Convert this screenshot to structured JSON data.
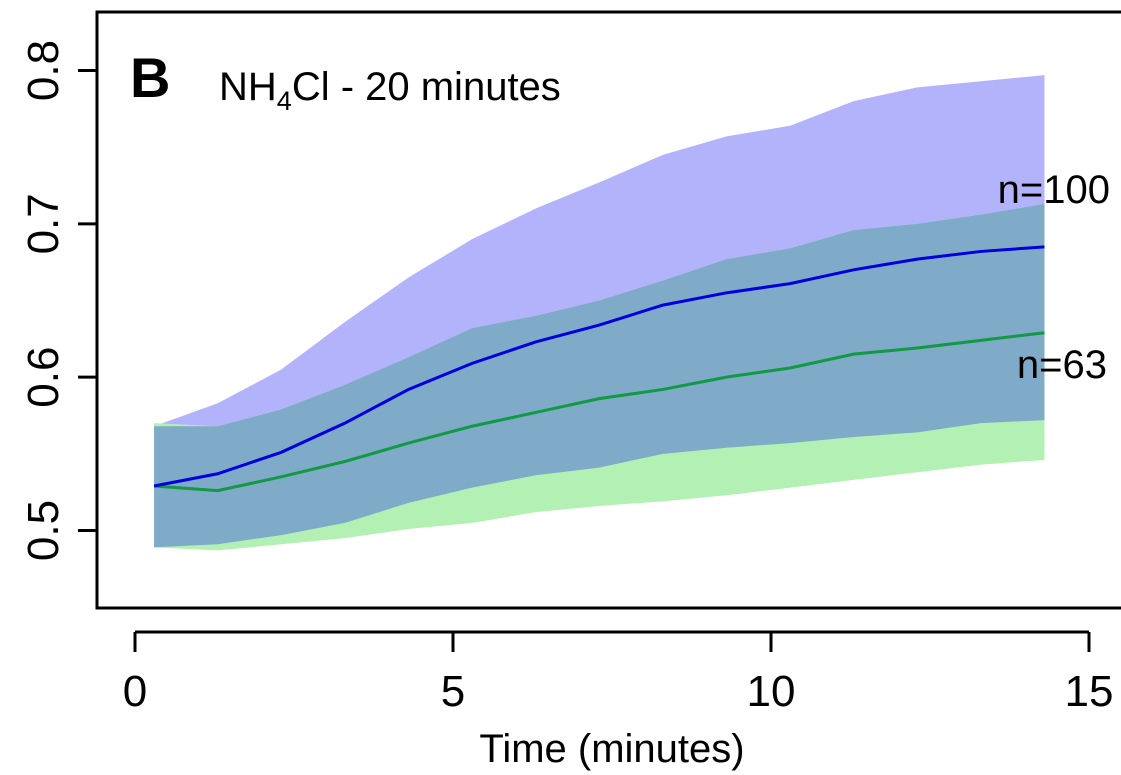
{
  "chart_data": {
    "type": "area",
    "panel_label": "B",
    "title": {
      "main": "NH",
      "subscript": "4",
      "rest": "Cl - 20 minutes"
    },
    "xlabel": "Time (minutes)",
    "ylabel": "",
    "xlim": [
      0,
      15
    ],
    "ylim": [
      0.45,
      0.84
    ],
    "x_ticks": [
      0,
      5,
      10,
      15
    ],
    "y_ticks": [
      0.5,
      0.6,
      0.7,
      0.8
    ],
    "x_tick_labels": [
      "0",
      "5",
      "10",
      "15"
    ],
    "y_tick_labels": [
      "0.5",
      "0.6",
      "0.7",
      "0.8"
    ],
    "grid": false,
    "x": [
      0.3,
      1.3,
      2.3,
      3.3,
      4.3,
      5.3,
      6.3,
      7.3,
      8.3,
      9.3,
      10.3,
      11.3,
      12.3,
      13.3,
      14.3
    ],
    "series": [
      {
        "label": "n=100",
        "line_color": "#0000dd",
        "band_color": "#b3b3fb",
        "mean": [
          0.529,
          0.537,
          0.551,
          0.57,
          0.592,
          0.609,
          0.623,
          0.634,
          0.647,
          0.655,
          0.661,
          0.67,
          0.677,
          0.682,
          0.685
        ],
        "lower": [
          0.489,
          0.491,
          0.497,
          0.505,
          0.518,
          0.528,
          0.536,
          0.541,
          0.55,
          0.554,
          0.557,
          0.561,
          0.564,
          0.57,
          0.572
        ],
        "upper": [
          0.568,
          0.583,
          0.605,
          0.636,
          0.665,
          0.69,
          0.71,
          0.727,
          0.745,
          0.757,
          0.764,
          0.78,
          0.789,
          0.793,
          0.797
        ]
      },
      {
        "label": "n=63",
        "line_color": "#119944",
        "band_color": "#b3f0b3",
        "mean": [
          0.529,
          0.526,
          0.535,
          0.545,
          0.557,
          0.568,
          0.577,
          0.586,
          0.592,
          0.6,
          0.606,
          0.615,
          0.619,
          0.624,
          0.629
        ],
        "lower": [
          0.489,
          0.487,
          0.491,
          0.495,
          0.501,
          0.505,
          0.512,
          0.516,
          0.519,
          0.523,
          0.528,
          0.533,
          0.538,
          0.543,
          0.546
        ],
        "upper": [
          0.57,
          0.568,
          0.579,
          0.595,
          0.613,
          0.632,
          0.64,
          0.65,
          0.663,
          0.677,
          0.684,
          0.696,
          0.7,
          0.706,
          0.713
        ]
      }
    ],
    "overlap_color": "#7faac8"
  }
}
